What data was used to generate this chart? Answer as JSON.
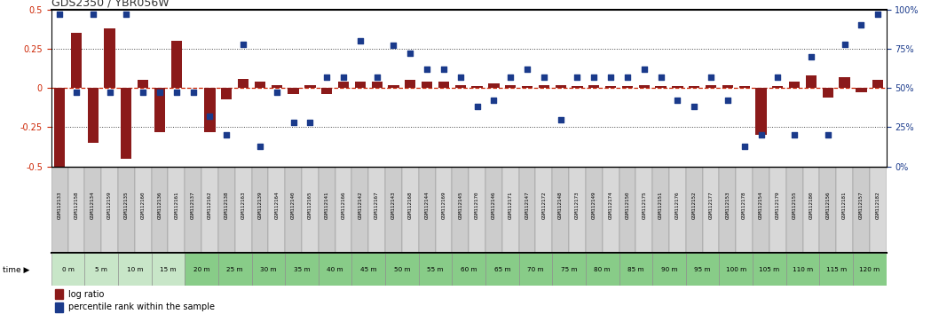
{
  "title": "GDS2350 / YBR056W",
  "samples": [
    "GSM112133",
    "GSM112158",
    "GSM112134",
    "GSM112159",
    "GSM112135",
    "GSM112160",
    "GSM112136",
    "GSM112161",
    "GSM112137",
    "GSM112162",
    "GSM112138",
    "GSM112163",
    "GSM112139",
    "GSM112164",
    "GSM112140",
    "GSM112165",
    "GSM112141",
    "GSM112166",
    "GSM112142",
    "GSM112167",
    "GSM112143",
    "GSM112168",
    "GSM112144",
    "GSM112169",
    "GSM112145",
    "GSM112170",
    "GSM112146",
    "GSM112171",
    "GSM112147",
    "GSM112172",
    "GSM112148",
    "GSM112173",
    "GSM112149",
    "GSM112174",
    "GSM112150",
    "GSM112175",
    "GSM112151",
    "GSM112176",
    "GSM112152",
    "GSM112177",
    "GSM112153",
    "GSM112178",
    "GSM112154",
    "GSM112179",
    "GSM112155",
    "GSM112180",
    "GSM112156",
    "GSM112181",
    "GSM112157",
    "GSM112182"
  ],
  "time_labels": [
    "0 m",
    "5 m",
    "10 m",
    "15 m",
    "20 m",
    "25 m",
    "30 m",
    "35 m",
    "40 m",
    "45 m",
    "50 m",
    "55 m",
    "60 m",
    "65 m",
    "70 m",
    "75 m",
    "80 m",
    "85 m",
    "90 m",
    "95 m",
    "100 m",
    "105 m",
    "110 m",
    "115 m",
    "120 m"
  ],
  "log_ratio": [
    -0.5,
    0.35,
    -0.35,
    0.38,
    -0.45,
    0.05,
    -0.28,
    0.3,
    0.0,
    -0.28,
    -0.07,
    0.06,
    0.04,
    0.02,
    -0.04,
    0.02,
    -0.04,
    0.04,
    0.04,
    0.04,
    0.02,
    0.05,
    0.04,
    0.04,
    0.02,
    0.01,
    0.03,
    0.02,
    0.01,
    0.02,
    0.02,
    0.01,
    0.02,
    0.01,
    0.01,
    0.02,
    0.01,
    0.01,
    0.01,
    0.02,
    0.02,
    0.01,
    -0.3,
    0.01,
    0.04,
    0.08,
    -0.06,
    0.07,
    -0.03,
    0.05
  ],
  "percentile_pct": [
    97,
    47,
    97,
    47,
    97,
    47,
    47,
    47,
    47,
    32,
    20,
    78,
    13,
    47,
    28,
    28,
    57,
    57,
    80,
    57,
    77,
    72,
    62,
    62,
    57,
    38,
    42,
    57,
    62,
    57,
    30,
    57,
    57,
    57,
    57,
    62,
    57,
    42,
    38,
    57,
    42,
    13,
    20,
    57,
    20,
    70,
    20,
    78,
    90,
    97
  ],
  "bar_color": "#8B1A1A",
  "dot_color": "#1A3A8B",
  "zero_line_color": "#CC2200",
  "grid_color": "#444444",
  "left_ytick_color": "#CC2200",
  "right_ytick_color": "#1A3A8B",
  "sample_box_color": "#CCCCCC",
  "time_box_color_light": "#C8E6C8",
  "time_box_color_green": "#88CC88",
  "time_box_border": "#888888",
  "legend_text_color": "#000000"
}
